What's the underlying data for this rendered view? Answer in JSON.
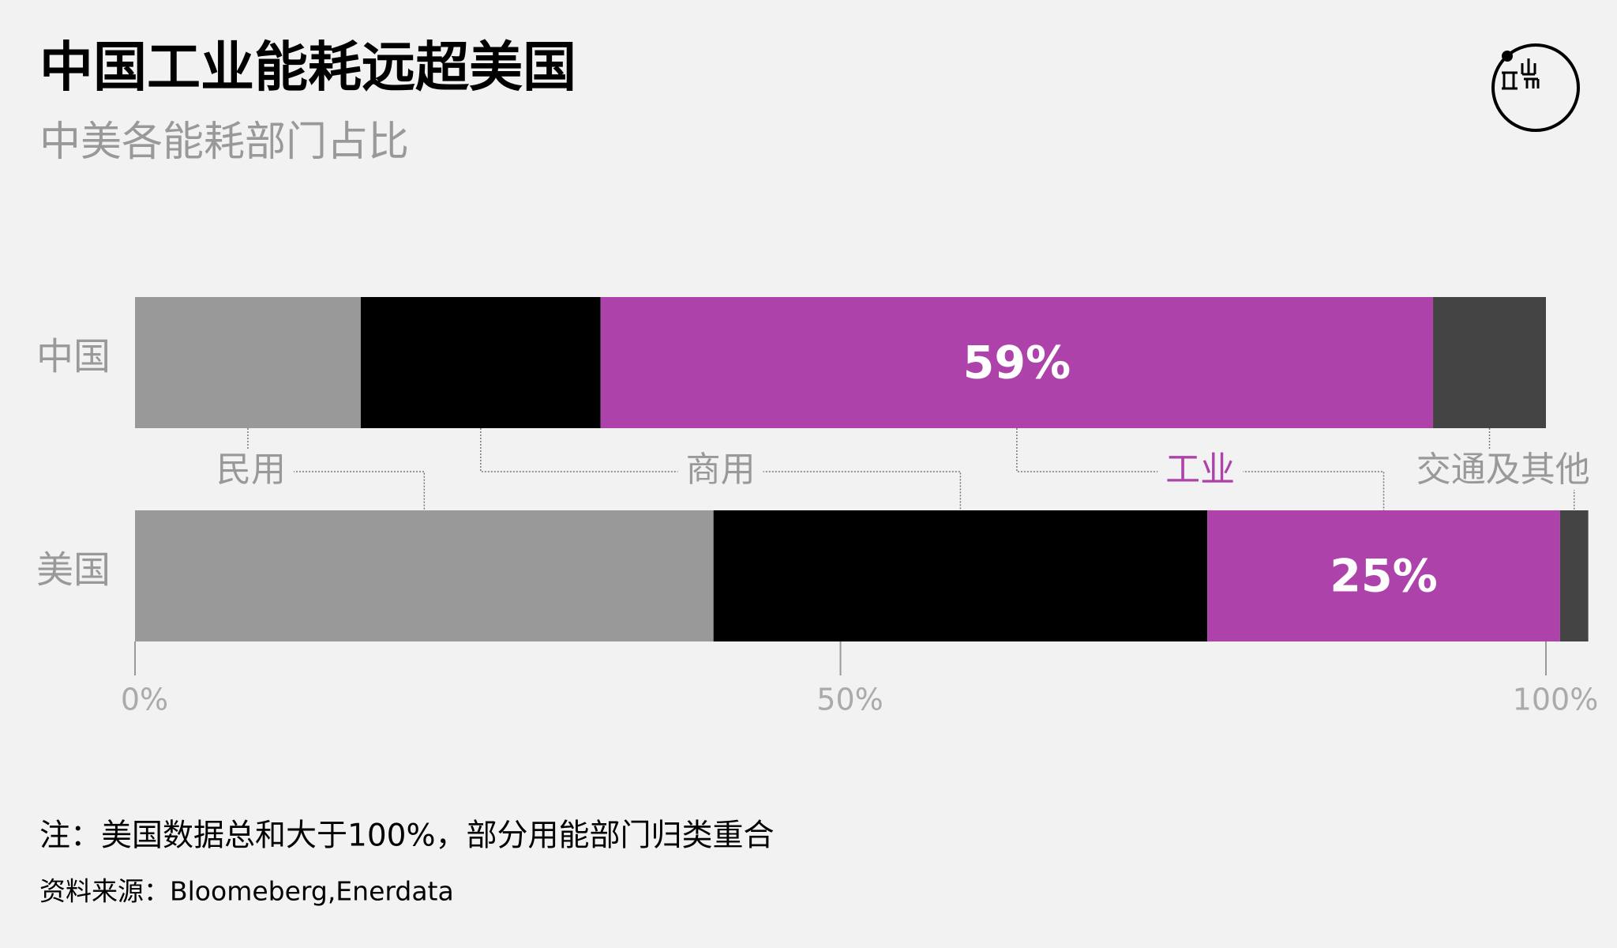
{
  "chart_data": {
    "type": "stacked-bar",
    "title": "中国工业能耗远超美国",
    "subtitle": "中美各能耗部门占比",
    "categories": [
      "中国",
      "美国"
    ],
    "series": [
      {
        "name": "民用",
        "color": "#999999",
        "values": [
          16,
          41
        ]
      },
      {
        "name": "商用",
        "color": "#000000",
        "values": [
          17,
          35
        ]
      },
      {
        "name": "工业",
        "color": "#ae42ab",
        "values": [
          59,
          25
        ],
        "value_labels": [
          "59%",
          "25%"
        ]
      },
      {
        "name": "交通及其他",
        "color": "#444444",
        "values": [
          8,
          2
        ]
      }
    ],
    "xlim": [
      0,
      100
    ],
    "xticks": [
      {
        "value": 0,
        "label": "0%"
      },
      {
        "value": 50,
        "label": "50%"
      },
      {
        "value": 100,
        "label": "100%"
      }
    ],
    "note": "注：美国数据总和大于100%，部分用能部门归类重合",
    "source": "资料来源：Bloomeberg,Enerdata"
  }
}
